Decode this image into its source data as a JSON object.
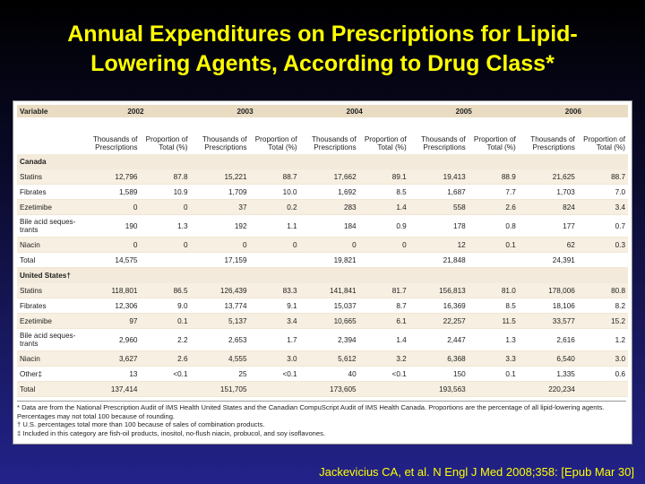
{
  "slide": {
    "title_line1": "Annual Expenditures on Prescriptions for Lipid-",
    "title_line2": "Lowering Agents, According to Drug Class*",
    "citation": "Jackevicius CA, et al. N Engl J Med 2008;358: [Epub Mar 30]"
  },
  "table": {
    "variable_header": "Variable",
    "years": [
      "2002",
      "2003",
      "2004",
      "2005",
      "2006"
    ],
    "sub_headers": {
      "thousands": "Thousands of Prescriptions",
      "proportion": "Proportion of Total (%)"
    },
    "canada": {
      "label": "Canada",
      "rows": [
        {
          "name": "Statins",
          "values": [
            "12,796",
            "87.8",
            "15,221",
            "88.7",
            "17,662",
            "89.1",
            "19,413",
            "88.9",
            "21,625",
            "88.7"
          ]
        },
        {
          "name": "Fibrates",
          "values": [
            "1,589",
            "10.9",
            "1,709",
            "10.0",
            "1,692",
            "8.5",
            "1,687",
            "7.7",
            "1,703",
            "7.0"
          ]
        },
        {
          "name": "Ezetimibe",
          "values": [
            "0",
            "0",
            "37",
            "0.2",
            "283",
            "1.4",
            "558",
            "2.6",
            "824",
            "3.4"
          ]
        },
        {
          "name": "Bile acid seques-trants",
          "values": [
            "190",
            "1.3",
            "192",
            "1.1",
            "184",
            "0.9",
            "178",
            "0.8",
            "177",
            "0.7"
          ]
        },
        {
          "name": "Niacin",
          "values": [
            "0",
            "0",
            "0",
            "0",
            "0",
            "0",
            "12",
            "0.1",
            "62",
            "0.3"
          ]
        },
        {
          "name": "Total",
          "values": [
            "14,575",
            "",
            "17,159",
            "",
            "19,821",
            "",
            "21,848",
            "",
            "24,391",
            ""
          ]
        }
      ]
    },
    "us": {
      "label": "United States†",
      "rows": [
        {
          "name": "Statins",
          "values": [
            "118,801",
            "86.5",
            "126,439",
            "83.3",
            "141,841",
            "81.7",
            "156,813",
            "81.0",
            "178,006",
            "80.8"
          ]
        },
        {
          "name": "Fibrates",
          "values": [
            "12,306",
            "9.0",
            "13,774",
            "9.1",
            "15,037",
            "8.7",
            "16,369",
            "8.5",
            "18,106",
            "8.2"
          ]
        },
        {
          "name": "Ezetimibe",
          "values": [
            "97",
            "0.1",
            "5,137",
            "3.4",
            "10,665",
            "6.1",
            "22,257",
            "11.5",
            "33,577",
            "15.2"
          ]
        },
        {
          "name": "Bile acid seques-trants",
          "values": [
            "2,960",
            "2.2",
            "2,653",
            "1.7",
            "2,394",
            "1.4",
            "2,447",
            "1.3",
            "2,616",
            "1.2"
          ]
        },
        {
          "name": "Niacin",
          "values": [
            "3,627",
            "2.6",
            "4,555",
            "3.0",
            "5,612",
            "3.2",
            "6,368",
            "3.3",
            "6,540",
            "3.0"
          ]
        },
        {
          "name": "Other‡",
          "values": [
            "13",
            "<0.1",
            "25",
            "<0.1",
            "40",
            "<0.1",
            "150",
            "0.1",
            "1,335",
            "0.6"
          ]
        },
        {
          "name": "Total",
          "values": [
            "137,414",
            "",
            "151,705",
            "",
            "173,605",
            "",
            "193,563",
            "",
            "220,234",
            ""
          ]
        }
      ]
    },
    "footnotes": [
      "* Data are from the National Prescription Audit of IMS Health United States and the Canadian CompuScript Audit of IMS Health Canada. Proportions are the percentage of all lipid-lowering agents. Percentages may not total 100 because of rounding.",
      "† U.S. percentages total more than 100 because of sales of combination products.",
      "‡ Included in this category are fish-oil products, inositol, no-flush niacin, probucol, and soy isoflavones."
    ]
  }
}
